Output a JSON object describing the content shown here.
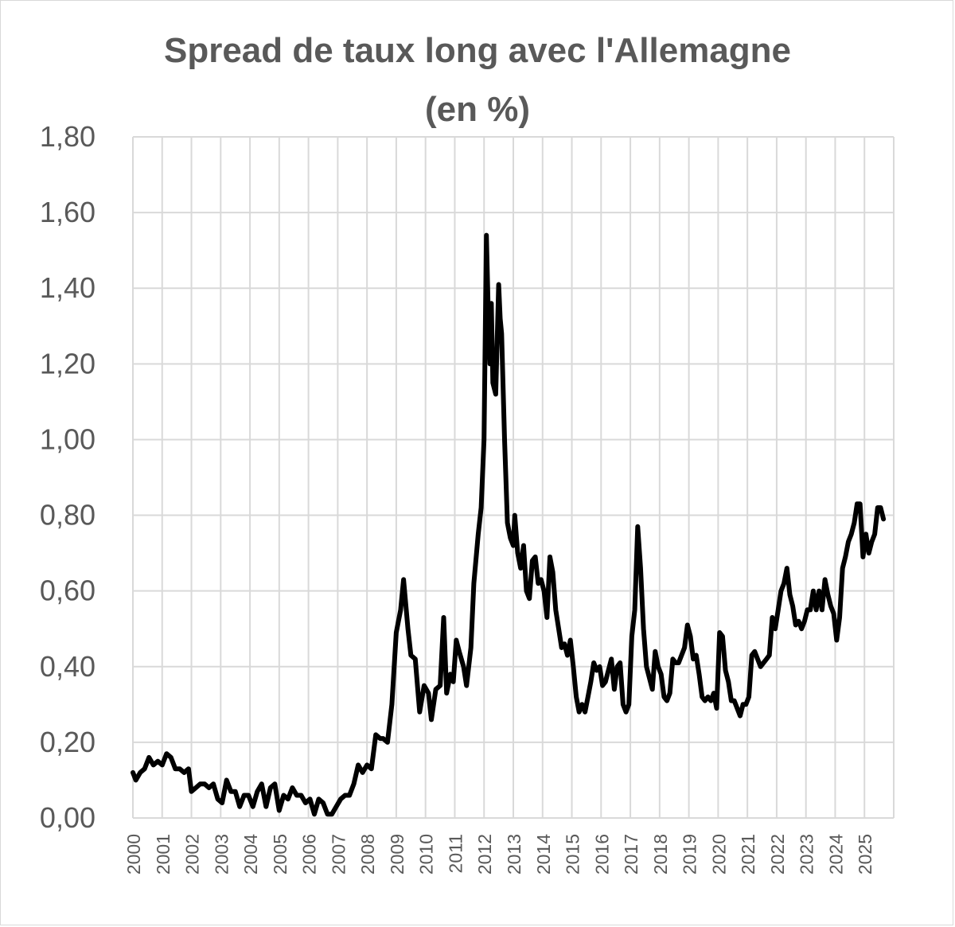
{
  "chart_data": {
    "type": "line",
    "title": "Spread de taux long avec l'Allemagne",
    "subtitle": "(en %)",
    "xlabel": "",
    "ylabel": "",
    "ylim": [
      0,
      1.8
    ],
    "xlim": [
      2000,
      2026
    ],
    "grid": true,
    "legend": "none",
    "line_color": "#000000",
    "grid_color": "#d9d9d9",
    "text_color": "#595959",
    "y_ticks": [
      "0,00",
      "0,20",
      "0,40",
      "0,60",
      "0,80",
      "1,00",
      "1,20",
      "1,40",
      "1,60",
      "1,80"
    ],
    "x_ticks": [
      "2000",
      "2001",
      "2002",
      "2003",
      "2004",
      "2005",
      "2006",
      "2007",
      "2008",
      "2009",
      "2010",
      "2011",
      "2012",
      "2013",
      "2014",
      "2015",
      "2016",
      "2017",
      "2018",
      "2019",
      "2020",
      "2021",
      "2022",
      "2023",
      "2024",
      "2025"
    ],
    "series": [
      {
        "values": [
          [
            2000.0,
            0.12
          ],
          [
            2000.1,
            0.1
          ],
          [
            2000.25,
            0.12
          ],
          [
            2000.4,
            0.13
          ],
          [
            2000.55,
            0.16
          ],
          [
            2000.7,
            0.14
          ],
          [
            2000.85,
            0.15
          ],
          [
            2001.0,
            0.14
          ],
          [
            2001.15,
            0.17
          ],
          [
            2001.3,
            0.16
          ],
          [
            2001.45,
            0.13
          ],
          [
            2001.6,
            0.13
          ],
          [
            2001.75,
            0.12
          ],
          [
            2001.9,
            0.13
          ],
          [
            2002.0,
            0.07
          ],
          [
            2002.15,
            0.08
          ],
          [
            2002.3,
            0.09
          ],
          [
            2002.45,
            0.09
          ],
          [
            2002.6,
            0.08
          ],
          [
            2002.75,
            0.09
          ],
          [
            2002.9,
            0.05
          ],
          [
            2003.05,
            0.04
          ],
          [
            2003.2,
            0.1
          ],
          [
            2003.35,
            0.07
          ],
          [
            2003.5,
            0.07
          ],
          [
            2003.65,
            0.03
          ],
          [
            2003.8,
            0.06
          ],
          [
            2003.95,
            0.06
          ],
          [
            2004.1,
            0.03
          ],
          [
            2004.25,
            0.07
          ],
          [
            2004.4,
            0.09
          ],
          [
            2004.55,
            0.03
          ],
          [
            2004.7,
            0.08
          ],
          [
            2004.85,
            0.09
          ],
          [
            2005.0,
            0.02
          ],
          [
            2005.15,
            0.06
          ],
          [
            2005.3,
            0.05
          ],
          [
            2005.45,
            0.08
          ],
          [
            2005.6,
            0.06
          ],
          [
            2005.75,
            0.06
          ],
          [
            2005.9,
            0.04
          ],
          [
            2006.05,
            0.05
          ],
          [
            2006.2,
            0.01
          ],
          [
            2006.35,
            0.05
          ],
          [
            2006.5,
            0.04
          ],
          [
            2006.65,
            0.01
          ],
          [
            2006.8,
            0.01
          ],
          [
            2006.95,
            0.03
          ],
          [
            2007.1,
            0.05
          ],
          [
            2007.25,
            0.06
          ],
          [
            2007.4,
            0.06
          ],
          [
            2007.55,
            0.09
          ],
          [
            2007.7,
            0.14
          ],
          [
            2007.85,
            0.12
          ],
          [
            2008.0,
            0.14
          ],
          [
            2008.15,
            0.13
          ],
          [
            2008.3,
            0.22
          ],
          [
            2008.45,
            0.21
          ],
          [
            2008.55,
            0.21
          ],
          [
            2008.7,
            0.2
          ],
          [
            2008.85,
            0.3
          ],
          [
            2009.0,
            0.49
          ],
          [
            2009.15,
            0.55
          ],
          [
            2009.25,
            0.63
          ],
          [
            2009.4,
            0.5
          ],
          [
            2009.5,
            0.43
          ],
          [
            2009.65,
            0.42
          ],
          [
            2009.8,
            0.28
          ],
          [
            2009.95,
            0.35
          ],
          [
            2010.1,
            0.33
          ],
          [
            2010.2,
            0.26
          ],
          [
            2010.35,
            0.34
          ],
          [
            2010.5,
            0.35
          ],
          [
            2010.62,
            0.53
          ],
          [
            2010.72,
            0.33
          ],
          [
            2010.85,
            0.38
          ],
          [
            2010.95,
            0.36
          ],
          [
            2011.05,
            0.47
          ],
          [
            2011.15,
            0.44
          ],
          [
            2011.3,
            0.4
          ],
          [
            2011.4,
            0.35
          ],
          [
            2011.55,
            0.45
          ],
          [
            2011.65,
            0.62
          ],
          [
            2011.8,
            0.75
          ],
          [
            2011.9,
            0.82
          ],
          [
            2012.0,
            1.0
          ],
          [
            2012.08,
            1.54
          ],
          [
            2012.15,
            1.32
          ],
          [
            2012.2,
            1.2
          ],
          [
            2012.25,
            1.36
          ],
          [
            2012.3,
            1.15
          ],
          [
            2012.4,
            1.12
          ],
          [
            2012.5,
            1.41
          ],
          [
            2012.55,
            1.32
          ],
          [
            2012.6,
            1.28
          ],
          [
            2012.7,
            1.0
          ],
          [
            2012.8,
            0.78
          ],
          [
            2012.9,
            0.74
          ],
          [
            2013.0,
            0.72
          ],
          [
            2013.05,
            0.8
          ],
          [
            2013.15,
            0.7
          ],
          [
            2013.25,
            0.66
          ],
          [
            2013.35,
            0.72
          ],
          [
            2013.45,
            0.6
          ],
          [
            2013.55,
            0.58
          ],
          [
            2013.65,
            0.68
          ],
          [
            2013.75,
            0.69
          ],
          [
            2013.85,
            0.62
          ],
          [
            2013.95,
            0.63
          ],
          [
            2014.05,
            0.6
          ],
          [
            2014.15,
            0.53
          ],
          [
            2014.25,
            0.69
          ],
          [
            2014.35,
            0.65
          ],
          [
            2014.45,
            0.55
          ],
          [
            2014.55,
            0.5
          ],
          [
            2014.65,
            0.45
          ],
          [
            2014.75,
            0.46
          ],
          [
            2014.85,
            0.43
          ],
          [
            2014.95,
            0.47
          ],
          [
            2015.05,
            0.4
          ],
          [
            2015.15,
            0.32
          ],
          [
            2015.25,
            0.28
          ],
          [
            2015.35,
            0.3
          ],
          [
            2015.45,
            0.28
          ],
          [
            2015.55,
            0.32
          ],
          [
            2015.65,
            0.36
          ],
          [
            2015.75,
            0.41
          ],
          [
            2015.85,
            0.39
          ],
          [
            2015.95,
            0.4
          ],
          [
            2016.05,
            0.35
          ],
          [
            2016.15,
            0.36
          ],
          [
            2016.25,
            0.39
          ],
          [
            2016.35,
            0.42
          ],
          [
            2016.45,
            0.34
          ],
          [
            2016.55,
            0.4
          ],
          [
            2016.65,
            0.41
          ],
          [
            2016.75,
            0.3
          ],
          [
            2016.85,
            0.28
          ],
          [
            2016.95,
            0.3
          ],
          [
            2017.05,
            0.48
          ],
          [
            2017.15,
            0.55
          ],
          [
            2017.25,
            0.77
          ],
          [
            2017.35,
            0.66
          ],
          [
            2017.45,
            0.5
          ],
          [
            2017.55,
            0.4
          ],
          [
            2017.65,
            0.37
          ],
          [
            2017.75,
            0.34
          ],
          [
            2017.85,
            0.44
          ],
          [
            2017.95,
            0.4
          ],
          [
            2018.05,
            0.38
          ],
          [
            2018.15,
            0.32
          ],
          [
            2018.25,
            0.31
          ],
          [
            2018.35,
            0.33
          ],
          [
            2018.45,
            0.42
          ],
          [
            2018.55,
            0.41
          ],
          [
            2018.65,
            0.41
          ],
          [
            2018.75,
            0.43
          ],
          [
            2018.85,
            0.45
          ],
          [
            2018.95,
            0.51
          ],
          [
            2019.05,
            0.48
          ],
          [
            2019.15,
            0.42
          ],
          [
            2019.25,
            0.43
          ],
          [
            2019.35,
            0.38
          ],
          [
            2019.45,
            0.32
          ],
          [
            2019.55,
            0.31
          ],
          [
            2019.65,
            0.32
          ],
          [
            2019.75,
            0.31
          ],
          [
            2019.85,
            0.33
          ],
          [
            2019.95,
            0.29
          ],
          [
            2020.05,
            0.49
          ],
          [
            2020.15,
            0.48
          ],
          [
            2020.25,
            0.39
          ],
          [
            2020.35,
            0.36
          ],
          [
            2020.45,
            0.31
          ],
          [
            2020.55,
            0.31
          ],
          [
            2020.65,
            0.29
          ],
          [
            2020.75,
            0.27
          ],
          [
            2020.85,
            0.3
          ],
          [
            2020.95,
            0.3
          ],
          [
            2021.05,
            0.32
          ],
          [
            2021.15,
            0.43
          ],
          [
            2021.25,
            0.44
          ],
          [
            2021.35,
            0.42
          ],
          [
            2021.45,
            0.4
          ],
          [
            2021.55,
            0.41
          ],
          [
            2021.65,
            0.42
          ],
          [
            2021.75,
            0.43
          ],
          [
            2021.85,
            0.53
          ],
          [
            2021.95,
            0.5
          ],
          [
            2022.05,
            0.55
          ],
          [
            2022.15,
            0.6
          ],
          [
            2022.25,
            0.62
          ],
          [
            2022.35,
            0.66
          ],
          [
            2022.45,
            0.59
          ],
          [
            2022.55,
            0.56
          ],
          [
            2022.65,
            0.51
          ],
          [
            2022.75,
            0.52
          ],
          [
            2022.85,
            0.5
          ],
          [
            2022.95,
            0.52
          ],
          [
            2023.05,
            0.55
          ],
          [
            2023.15,
            0.55
          ],
          [
            2023.25,
            0.6
          ],
          [
            2023.35,
            0.55
          ],
          [
            2023.45,
            0.6
          ],
          [
            2023.55,
            0.55
          ],
          [
            2023.65,
            0.63
          ],
          [
            2023.75,
            0.59
          ],
          [
            2023.85,
            0.56
          ],
          [
            2023.95,
            0.54
          ],
          [
            2024.05,
            0.47
          ],
          [
            2024.15,
            0.53
          ],
          [
            2024.25,
            0.66
          ],
          [
            2024.35,
            0.69
          ],
          [
            2024.45,
            0.73
          ],
          [
            2024.55,
            0.75
          ],
          [
            2024.65,
            0.78
          ],
          [
            2024.75,
            0.83
          ],
          [
            2024.85,
            0.83
          ],
          [
            2024.95,
            0.69
          ],
          [
            2025.05,
            0.75
          ],
          [
            2025.15,
            0.7
          ],
          [
            2025.25,
            0.73
          ],
          [
            2025.35,
            0.75
          ],
          [
            2025.45,
            0.82
          ],
          [
            2025.55,
            0.82
          ],
          [
            2025.65,
            0.79
          ]
        ]
      }
    ]
  }
}
